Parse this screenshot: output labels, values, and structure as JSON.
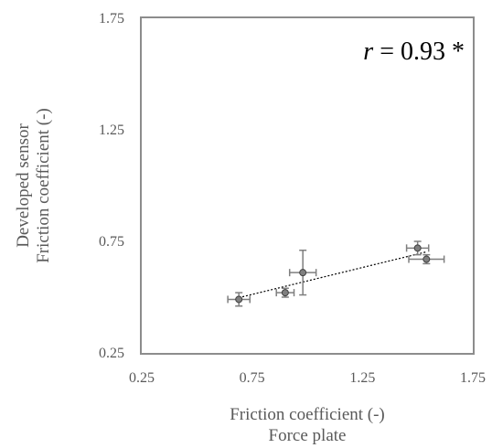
{
  "chart_data": {
    "type": "scatter",
    "x_label_lines": [
      "Friction coefficient (-)",
      "Force plate"
    ],
    "y_label_lines": [
      "Developed sensor",
      "Friction coefficient (-)"
    ],
    "xlim": [
      0.25,
      1.75
    ],
    "ylim": [
      0.25,
      1.75
    ],
    "x_ticks": [
      "0.25",
      "0.75",
      "1.25",
      "1.75"
    ],
    "y_ticks": [
      "0.25",
      "0.75",
      "1.25",
      "1.75"
    ],
    "annotation": "r = 0.93 *",
    "annotation_parts": {
      "italic": "r",
      "rest": " = 0.93 *"
    },
    "grid": false,
    "trendline": "linear, dotted",
    "points": [
      {
        "x": 0.69,
        "y": 0.49,
        "xerr": 0.05,
        "yerr": 0.03
      },
      {
        "x": 0.9,
        "y": 0.52,
        "xerr": 0.04,
        "yerr": 0.02
      },
      {
        "x": 0.98,
        "y": 0.61,
        "xerr": 0.06,
        "yerr": 0.1
      },
      {
        "x": 1.5,
        "y": 0.72,
        "xerr": 0.05,
        "yerr": 0.03
      },
      {
        "x": 1.54,
        "y": 0.67,
        "xerr": 0.08,
        "yerr": 0.02
      }
    ],
    "colors": {
      "frame": "#8c8c8c",
      "marker": "#7f7f7f",
      "marker_edge": "#404040",
      "errorbar": "#7f7f7f",
      "trendline": "#000000"
    }
  }
}
